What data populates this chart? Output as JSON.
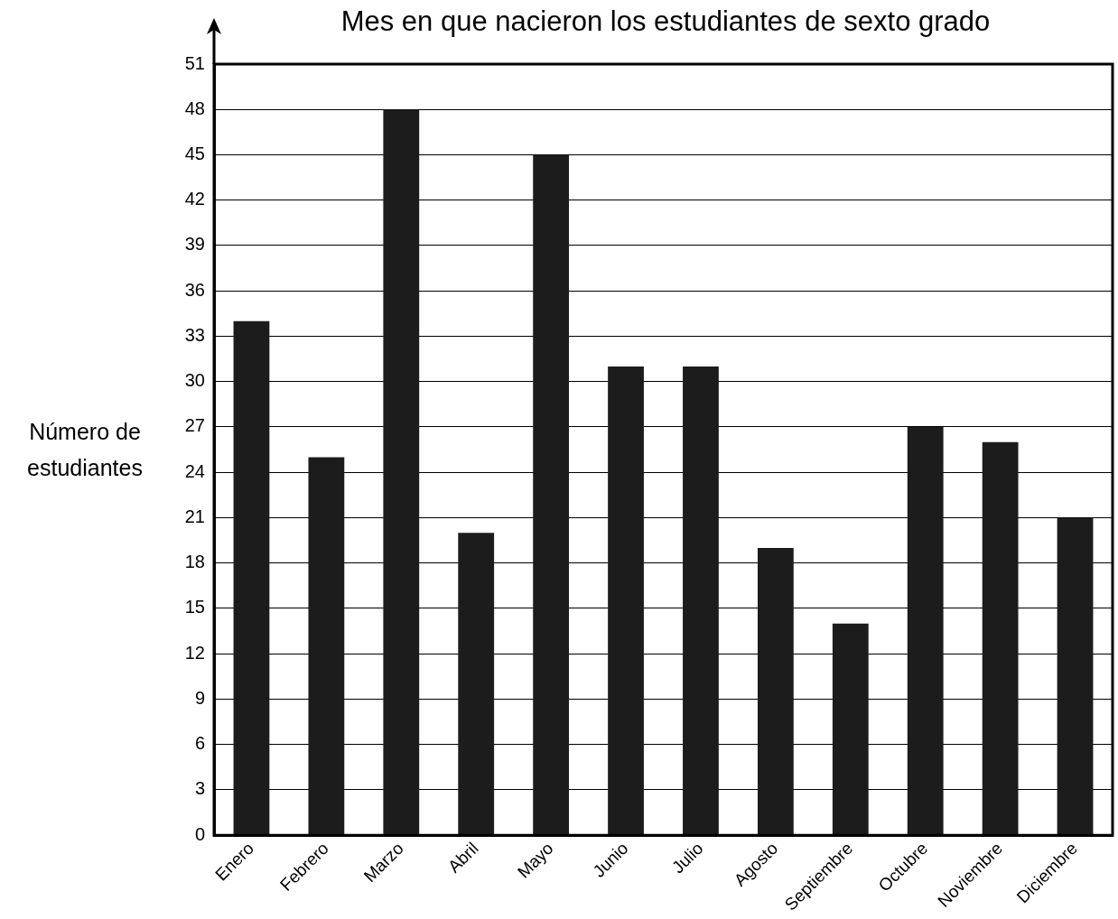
{
  "chart_data": {
    "type": "bar",
    "title": "Mes en que nacieron los estudiantes de sexto grado",
    "ylabel": "Número de estudiantes",
    "categories": [
      "Enero",
      "Febrero",
      "Marzo",
      "Abril",
      "Mayo",
      "Junio",
      "Julio",
      "Agosto",
      "Septiembre",
      "Octubre",
      "Noviembre",
      "Diciembre"
    ],
    "values": [
      34,
      25,
      48,
      20,
      45,
      31,
      31,
      19,
      14,
      27,
      26,
      21
    ],
    "color": "#1c1c1c",
    "ylim": [
      0,
      51
    ],
    "yticks": [
      0,
      3,
      6,
      9,
      12,
      15,
      18,
      21,
      24,
      27,
      30,
      33,
      36,
      39,
      42,
      45,
      48,
      51
    ],
    "grid": "y"
  }
}
